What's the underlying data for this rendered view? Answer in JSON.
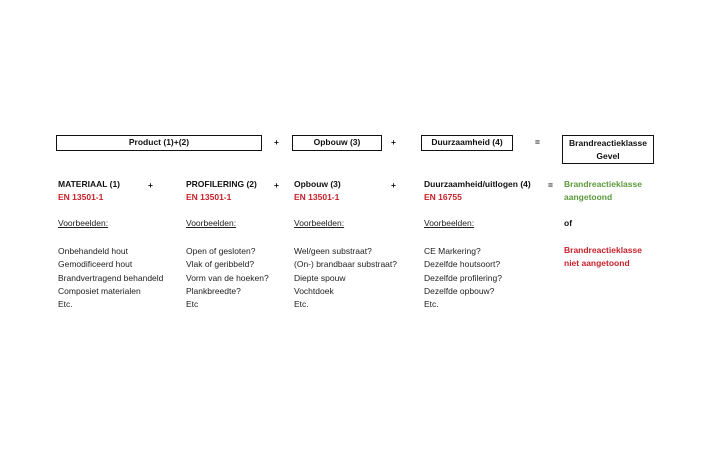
{
  "header": {
    "boxes": [
      "Product (1)+(2)",
      "Opbouw (3)",
      "Duurzaamheid (4)",
      "Brandreactieklasse",
      "Gevel"
    ],
    "operators": [
      "+",
      "+",
      "="
    ]
  },
  "columns": [
    {
      "title": "MATERIAAL (1)",
      "norm": "EN 13501-1",
      "examples_label": "Voorbeelden:",
      "items": [
        "Onbehandeld hout",
        "Gemodificeerd hout",
        "Brandvertragend behandeld",
        "Composiet materialen",
        "Etc."
      ]
    },
    {
      "title": "PROFILERING (2)",
      "norm": "EN 13501-1",
      "examples_label": "Voorbeelden:",
      "items": [
        "Open of gesloten?",
        "Vlak of geribbeld?",
        "Vorm van de hoeken?",
        "Plankbreedte?",
        "Etc"
      ]
    },
    {
      "title": "Opbouw (3)",
      "norm": "EN 13501-1",
      "examples_label": "Voorbeelden:",
      "items": [
        "Wel/geen substraat?",
        "(On-) brandbaar substraat?",
        "Diepte spouw",
        "Vochtdoek",
        "Etc."
      ]
    },
    {
      "title": "Duurzaamheid/uitlogen (4)",
      "norm": "EN 16755",
      "examples_label": "Voorbeelden:",
      "items": [
        "CE Markering?",
        "Dezelfde houtsoort?",
        "Dezelfde profilering?",
        "Dezelfde opbouw?",
        "Etc."
      ]
    }
  ],
  "row_operators": [
    "+",
    "+",
    "+",
    "="
  ],
  "result": {
    "positive": [
      "Brandreactieklasse",
      "aangetoond"
    ],
    "or": "of",
    "negative": [
      "Brandreactieklasse",
      "niet aangetoond"
    ]
  },
  "colors": {
    "norm_red": "#c8202a",
    "positive_green": "#5a9a3c"
  }
}
